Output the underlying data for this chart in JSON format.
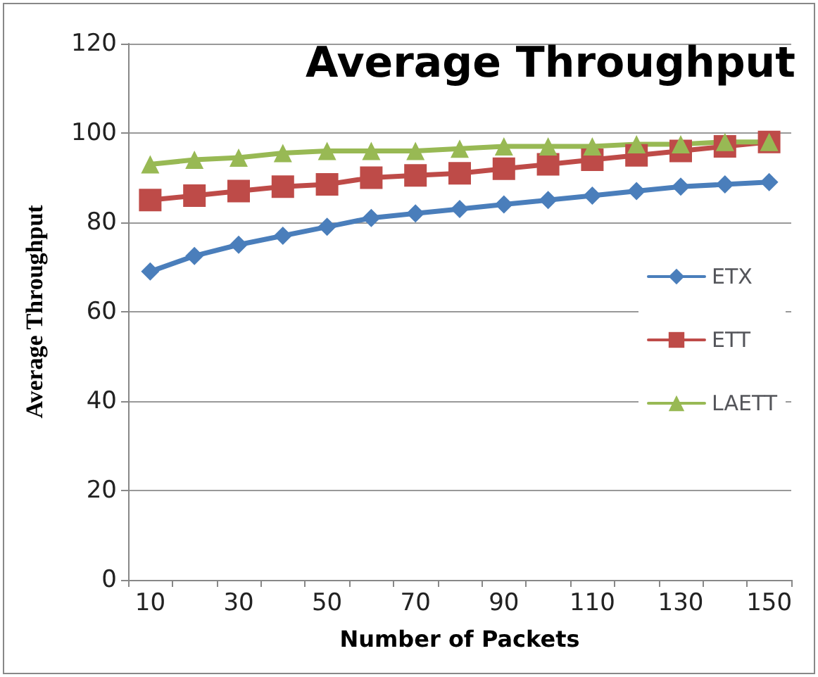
{
  "chart_data": {
    "type": "line",
    "title": "Average Throughput",
    "xlabel": "Number of Packets",
    "ylabel": "Average Throughput",
    "categories": [
      "10",
      null,
      "30",
      null,
      "50",
      null,
      "70",
      null,
      "90",
      null,
      "110",
      null,
      "130",
      null,
      "150"
    ],
    "ylim": [
      0,
      120
    ],
    "yticks": [
      0,
      20,
      40,
      60,
      80,
      100,
      120
    ],
    "grid": "y",
    "legend": "right",
    "series": [
      {
        "name": "ETX",
        "color": "#4a7ebb",
        "marker": "diamond",
        "values": [
          69,
          72.5,
          75,
          77,
          79,
          81,
          82,
          83,
          84,
          85,
          86,
          87,
          88,
          88.5,
          89
        ]
      },
      {
        "name": "ETT",
        "color": "#be4b48",
        "marker": "square",
        "values": [
          85,
          86,
          87,
          88,
          88.5,
          90,
          90.5,
          91,
          92,
          93,
          94,
          95,
          96,
          97,
          98
        ]
      },
      {
        "name": "LAETT",
        "color": "#98b954",
        "marker": "triangle",
        "values": [
          93,
          94,
          94.5,
          95.5,
          96,
          96,
          96,
          96.5,
          97,
          97,
          97,
          97.5,
          97.5,
          98,
          98
        ]
      }
    ]
  }
}
